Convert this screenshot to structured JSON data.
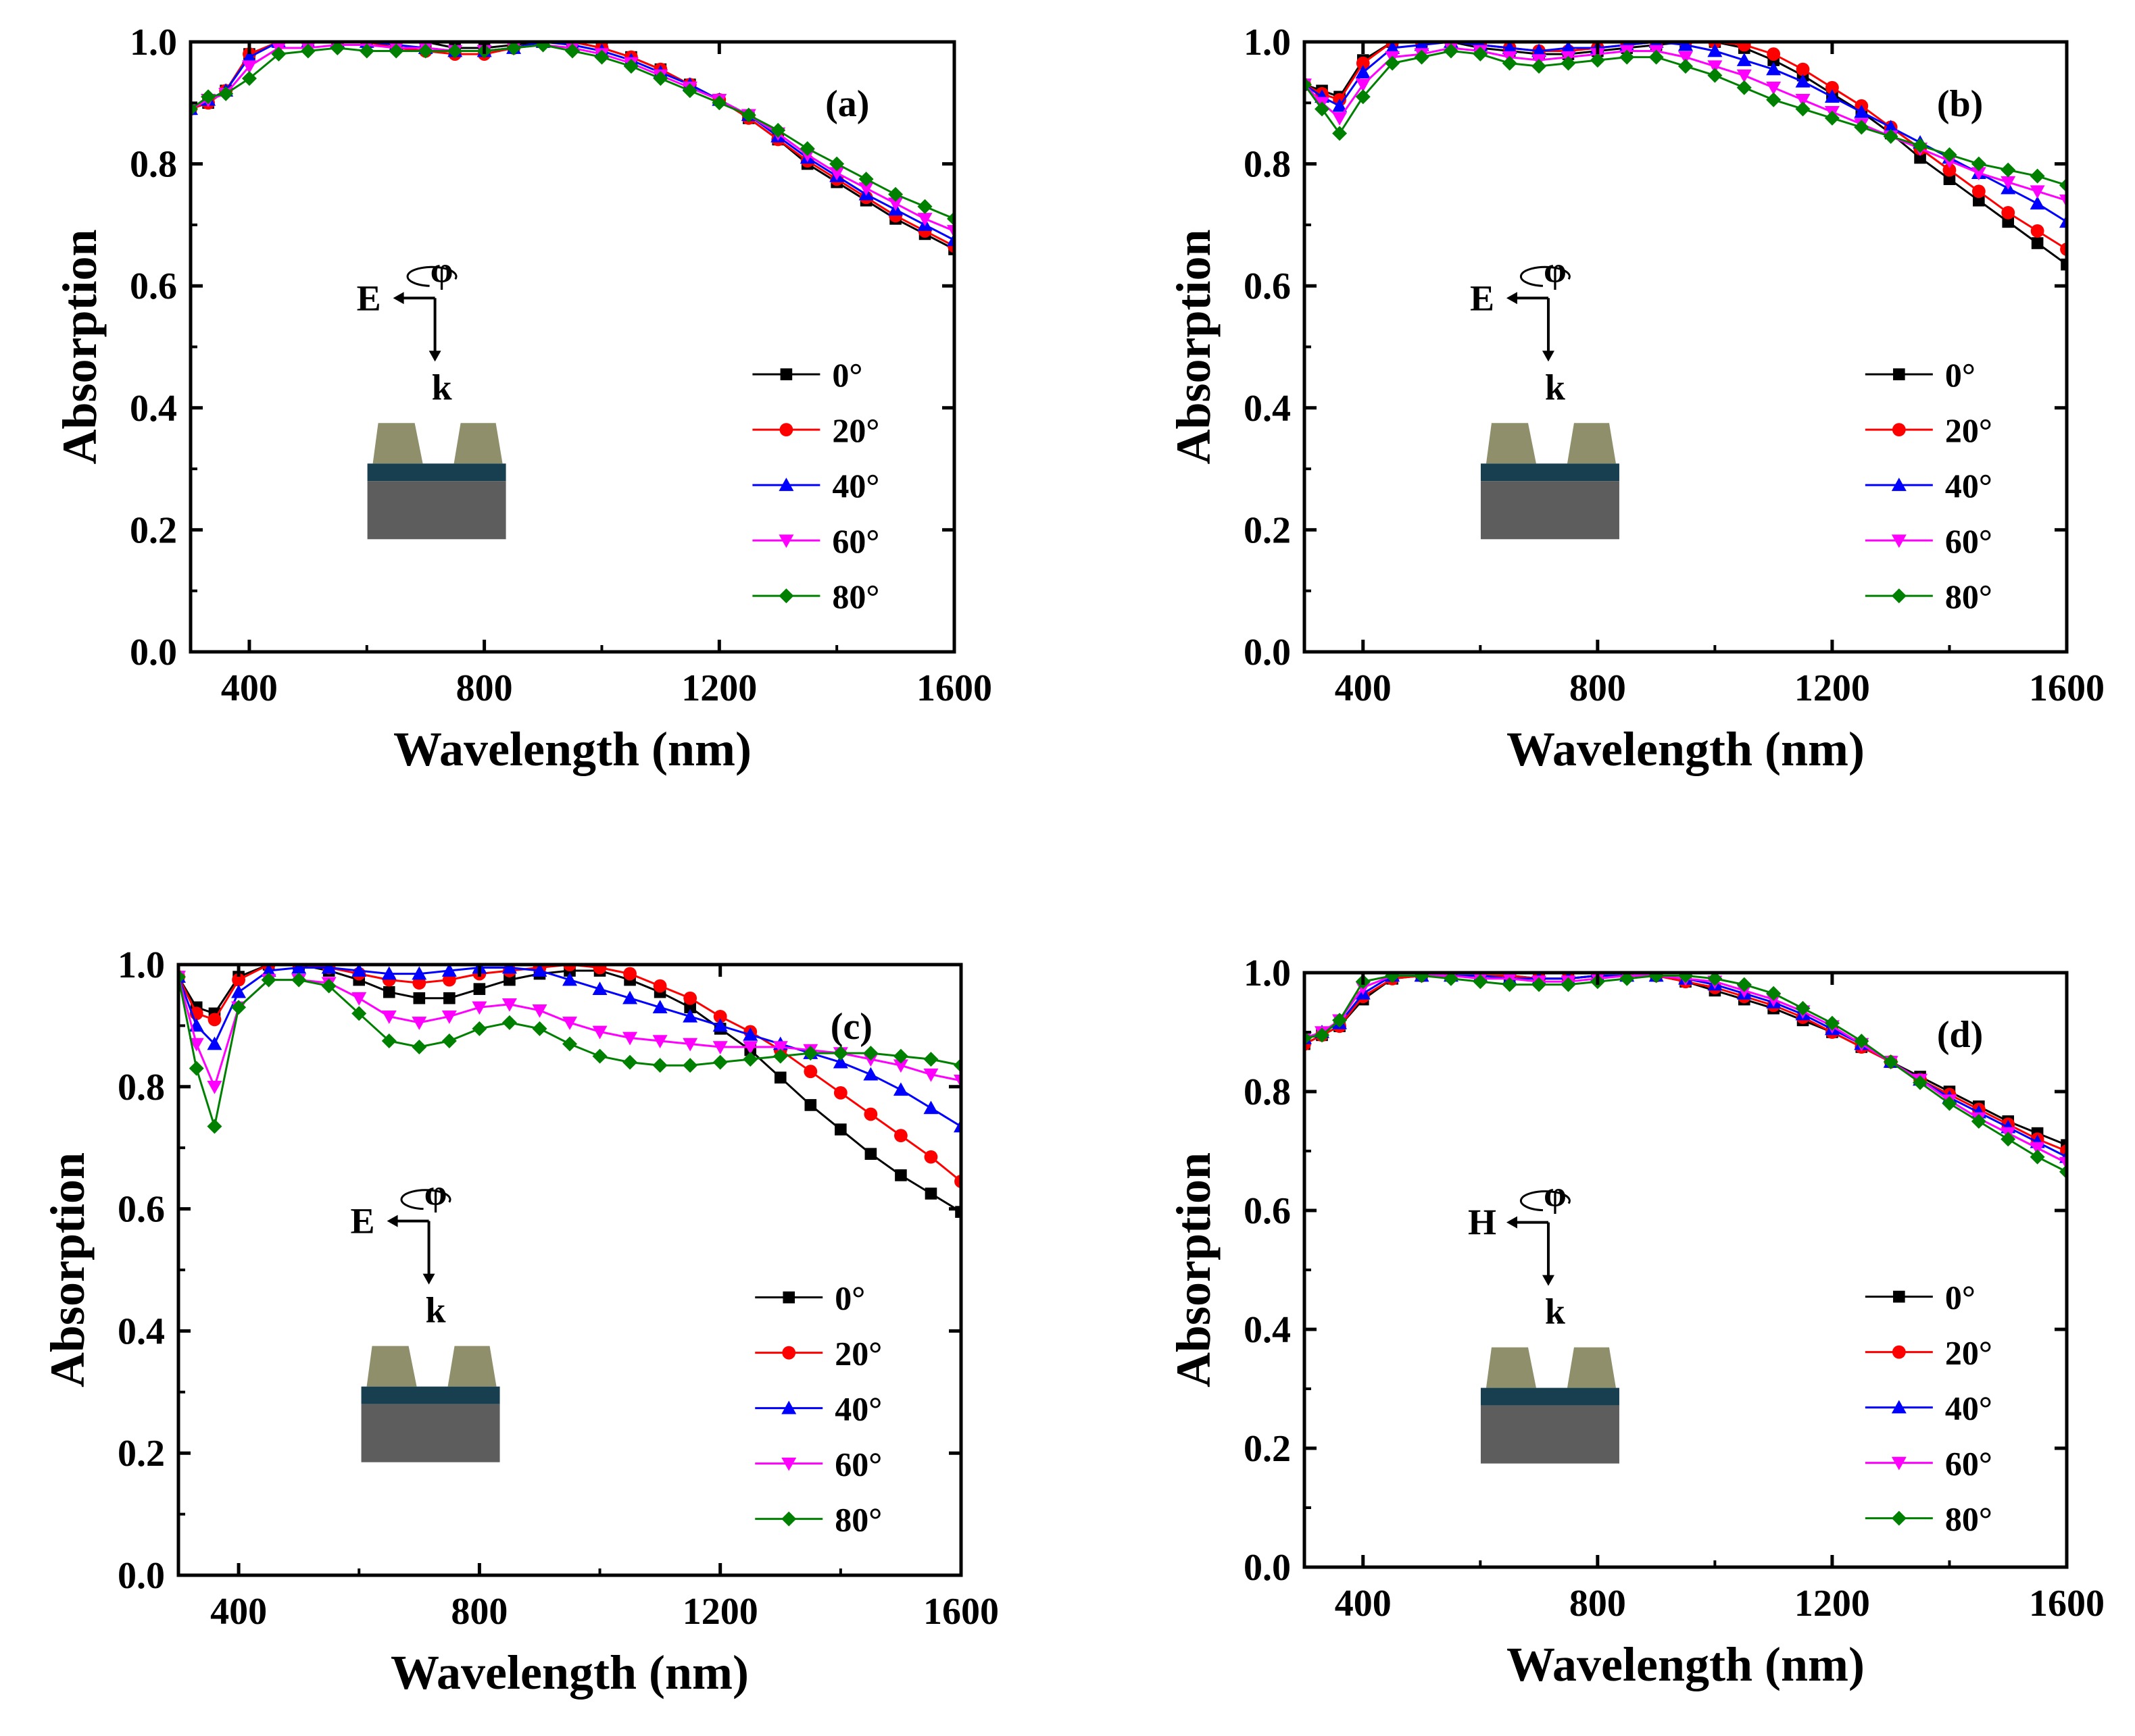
{
  "figure": {
    "description_axis": {
      "x_label": "Wavelength (nm)",
      "y_label": "Absorption"
    }
  },
  "colors": {
    "0": "#000000",
    "20": "#ff0000",
    "40": "#0000ff",
    "60": "#ff00ff",
    "80": "#008000",
    "trapezoid": "#8f8f6b",
    "spacer": "#173f4f",
    "substrate": "#5d5d5d"
  },
  "chart_data": [
    {
      "type": "line",
      "panel_label": "(a)",
      "xlabel": "Wavelength (nm)",
      "ylabel": "Absorption",
      "xlim": [
        300,
        1600
      ],
      "ylim": [
        0.0,
        1.0
      ],
      "xticks": [
        "400",
        "800",
        "1200",
        "1600"
      ],
      "yticks": [
        "0.0",
        "0.2",
        "0.4",
        "0.6",
        "0.8",
        "1.0"
      ],
      "inset": {
        "field": "E",
        "wave": "k",
        "angle": "φ"
      },
      "x": [
        300,
        330,
        360,
        400,
        450,
        500,
        550,
        600,
        650,
        700,
        750,
        800,
        850,
        900,
        950,
        1000,
        1050,
        1100,
        1150,
        1200,
        1250,
        1300,
        1350,
        1400,
        1450,
        1500,
        1550,
        1600
      ],
      "series": [
        {
          "name": "0°",
          "angle": "0",
          "marker": "square",
          "values": [
            0.89,
            0.9,
            0.92,
            0.98,
            1.0,
            1.0,
            1.0,
            1.0,
            1.0,
            1.0,
            0.99,
            0.99,
            0.995,
            1.0,
            1.0,
            0.99,
            0.975,
            0.955,
            0.93,
            0.905,
            0.875,
            0.84,
            0.8,
            0.77,
            0.74,
            0.71,
            0.685,
            0.66
          ]
        },
        {
          "name": "20°",
          "angle": "20",
          "marker": "circle",
          "values": [
            0.89,
            0.9,
            0.92,
            0.98,
            1.0,
            1.0,
            1.0,
            1.0,
            0.99,
            0.985,
            0.98,
            0.98,
            0.99,
            1.0,
            1.0,
            0.99,
            0.975,
            0.955,
            0.93,
            0.905,
            0.875,
            0.84,
            0.805,
            0.775,
            0.745,
            0.715,
            0.69,
            0.665
          ]
        },
        {
          "name": "40°",
          "angle": "40",
          "marker": "triangle-up",
          "values": [
            0.89,
            0.905,
            0.92,
            0.975,
            1.0,
            1.0,
            1.0,
            1.0,
            0.995,
            0.99,
            0.985,
            0.985,
            0.99,
            1.0,
            0.995,
            0.985,
            0.97,
            0.95,
            0.93,
            0.905,
            0.88,
            0.845,
            0.81,
            0.78,
            0.75,
            0.725,
            0.7,
            0.675
          ]
        },
        {
          "name": "60°",
          "angle": "60",
          "marker": "triangle-down",
          "values": [
            0.89,
            0.905,
            0.915,
            0.96,
            0.99,
            0.99,
            0.995,
            0.995,
            0.99,
            0.99,
            0.985,
            0.985,
            0.99,
            0.995,
            0.99,
            0.98,
            0.965,
            0.945,
            0.925,
            0.905,
            0.88,
            0.85,
            0.815,
            0.785,
            0.76,
            0.735,
            0.71,
            0.69
          ]
        },
        {
          "name": "80°",
          "angle": "80",
          "marker": "diamond",
          "values": [
            0.89,
            0.91,
            0.915,
            0.94,
            0.98,
            0.985,
            0.99,
            0.985,
            0.985,
            0.985,
            0.985,
            0.985,
            0.99,
            0.995,
            0.985,
            0.975,
            0.96,
            0.94,
            0.92,
            0.9,
            0.88,
            0.855,
            0.825,
            0.8,
            0.775,
            0.75,
            0.73,
            0.71
          ]
        }
      ]
    },
    {
      "type": "line",
      "panel_label": "(b)",
      "xlabel": "Wavelength (nm)",
      "ylabel": "Absorption",
      "xlim": [
        300,
        1600
      ],
      "ylim": [
        0.0,
        1.0
      ],
      "xticks": [
        "400",
        "800",
        "1200",
        "1600"
      ],
      "yticks": [
        "0.0",
        "0.2",
        "0.4",
        "0.6",
        "0.8",
        "1.0"
      ],
      "inset": {
        "field": "E",
        "wave": "k",
        "angle": "φ"
      },
      "x": [
        300,
        330,
        360,
        400,
        450,
        500,
        550,
        600,
        650,
        700,
        750,
        800,
        850,
        900,
        950,
        1000,
        1050,
        1100,
        1150,
        1200,
        1250,
        1300,
        1350,
        1400,
        1450,
        1500,
        1550,
        1600
      ],
      "series": [
        {
          "name": "0°",
          "angle": "0",
          "marker": "square",
          "values": [
            0.93,
            0.92,
            0.91,
            0.97,
            1.0,
            1.0,
            1.0,
            0.99,
            0.985,
            0.98,
            0.98,
            0.985,
            0.99,
            0.995,
            1.0,
            1.0,
            0.99,
            0.97,
            0.945,
            0.915,
            0.885,
            0.85,
            0.81,
            0.775,
            0.74,
            0.705,
            0.67,
            0.635
          ]
        },
        {
          "name": "20°",
          "angle": "20",
          "marker": "circle",
          "values": [
            0.93,
            0.915,
            0.905,
            0.965,
            1.0,
            1.0,
            1.0,
            0.995,
            0.99,
            0.985,
            0.985,
            0.99,
            0.995,
            1.0,
            1.0,
            1.0,
            0.995,
            0.98,
            0.955,
            0.925,
            0.895,
            0.86,
            0.825,
            0.79,
            0.755,
            0.72,
            0.69,
            0.66
          ]
        },
        {
          "name": "40°",
          "angle": "40",
          "marker": "triangle-up",
          "values": [
            0.93,
            0.91,
            0.895,
            0.95,
            0.99,
            0.995,
            1.0,
            0.995,
            0.99,
            0.985,
            0.99,
            0.99,
            0.995,
            1.0,
            0.995,
            0.985,
            0.97,
            0.955,
            0.935,
            0.91,
            0.885,
            0.86,
            0.835,
            0.81,
            0.785,
            0.76,
            0.735,
            0.705
          ]
        },
        {
          "name": "60°",
          "angle": "60",
          "marker": "triangle-down",
          "values": [
            0.93,
            0.9,
            0.875,
            0.93,
            0.975,
            0.98,
            0.99,
            0.985,
            0.975,
            0.97,
            0.975,
            0.98,
            0.985,
            0.985,
            0.975,
            0.96,
            0.945,
            0.925,
            0.905,
            0.885,
            0.865,
            0.845,
            0.825,
            0.805,
            0.785,
            0.77,
            0.755,
            0.74
          ]
        },
        {
          "name": "80°",
          "angle": "80",
          "marker": "diamond",
          "values": [
            0.93,
            0.89,
            0.85,
            0.91,
            0.965,
            0.975,
            0.985,
            0.98,
            0.965,
            0.96,
            0.965,
            0.97,
            0.975,
            0.975,
            0.96,
            0.945,
            0.925,
            0.905,
            0.89,
            0.875,
            0.86,
            0.845,
            0.83,
            0.815,
            0.8,
            0.79,
            0.78,
            0.765
          ]
        }
      ]
    },
    {
      "type": "line",
      "panel_label": "(c)",
      "xlabel": "Wavelength (nm)",
      "ylabel": "Absorption",
      "xlim": [
        300,
        1600
      ],
      "ylim": [
        0.0,
        1.0
      ],
      "xticks": [
        "400",
        "800",
        "1200",
        "1600"
      ],
      "yticks": [
        "0.0",
        "0.2",
        "0.4",
        "0.6",
        "0.8",
        "1.0"
      ],
      "inset": {
        "field": "E",
        "wave": "k",
        "angle": "φ"
      },
      "x": [
        300,
        330,
        360,
        400,
        450,
        500,
        550,
        600,
        650,
        700,
        750,
        800,
        850,
        900,
        950,
        1000,
        1050,
        1100,
        1150,
        1200,
        1250,
        1300,
        1350,
        1400,
        1450,
        1500,
        1550,
        1600
      ],
      "series": [
        {
          "name": "0°",
          "angle": "0",
          "marker": "square",
          "values": [
            0.98,
            0.93,
            0.92,
            0.98,
            1.0,
            1.0,
            0.99,
            0.975,
            0.955,
            0.945,
            0.945,
            0.96,
            0.975,
            0.985,
            0.99,
            0.99,
            0.975,
            0.955,
            0.93,
            0.895,
            0.86,
            0.815,
            0.77,
            0.73,
            0.69,
            0.655,
            0.625,
            0.595
          ]
        },
        {
          "name": "20°",
          "angle": "20",
          "marker": "circle",
          "values": [
            0.98,
            0.92,
            0.91,
            0.975,
            1.0,
            1.0,
            0.995,
            0.985,
            0.975,
            0.97,
            0.975,
            0.985,
            0.99,
            0.995,
            1.0,
            0.995,
            0.985,
            0.965,
            0.945,
            0.915,
            0.89,
            0.86,
            0.825,
            0.79,
            0.755,
            0.72,
            0.685,
            0.645
          ]
        },
        {
          "name": "40°",
          "angle": "40",
          "marker": "triangle-up",
          "values": [
            0.98,
            0.9,
            0.87,
            0.955,
            0.99,
            0.995,
            0.995,
            0.99,
            0.985,
            0.985,
            0.99,
            0.995,
            0.995,
            0.99,
            0.975,
            0.96,
            0.945,
            0.93,
            0.915,
            0.9,
            0.885,
            0.87,
            0.855,
            0.84,
            0.82,
            0.795,
            0.765,
            0.735
          ]
        },
        {
          "name": "60°",
          "angle": "60",
          "marker": "triangle-down",
          "values": [
            0.98,
            0.87,
            0.8,
            0.93,
            0.975,
            0.975,
            0.97,
            0.945,
            0.915,
            0.905,
            0.915,
            0.93,
            0.935,
            0.925,
            0.905,
            0.89,
            0.88,
            0.875,
            0.87,
            0.865,
            0.865,
            0.865,
            0.86,
            0.855,
            0.845,
            0.835,
            0.82,
            0.81
          ]
        },
        {
          "name": "80°",
          "angle": "80",
          "marker": "diamond",
          "values": [
            0.98,
            0.83,
            0.735,
            0.93,
            0.975,
            0.975,
            0.965,
            0.92,
            0.875,
            0.865,
            0.875,
            0.895,
            0.905,
            0.895,
            0.87,
            0.85,
            0.84,
            0.835,
            0.835,
            0.84,
            0.845,
            0.85,
            0.855,
            0.855,
            0.855,
            0.85,
            0.845,
            0.835
          ]
        }
      ]
    },
    {
      "type": "line",
      "panel_label": "(d)",
      "xlabel": "Wavelength (nm)",
      "ylabel": "Absorption",
      "xlim": [
        300,
        1600
      ],
      "ylim": [
        0.0,
        1.0
      ],
      "xticks": [
        "400",
        "800",
        "1200",
        "1600"
      ],
      "yticks": [
        "0.0",
        "0.2",
        "0.4",
        "0.6",
        "0.8",
        "1.0"
      ],
      "inset": {
        "field": "H",
        "wave": "k",
        "angle": "φ"
      },
      "x": [
        300,
        330,
        360,
        400,
        450,
        500,
        550,
        600,
        650,
        700,
        750,
        800,
        850,
        900,
        950,
        1000,
        1050,
        1100,
        1150,
        1200,
        1250,
        1300,
        1350,
        1400,
        1450,
        1500,
        1550,
        1600
      ],
      "series": [
        {
          "name": "0°",
          "angle": "0",
          "marker": "square",
          "values": [
            0.88,
            0.895,
            0.91,
            0.955,
            0.99,
            0.995,
            0.995,
            0.995,
            0.995,
            0.99,
            0.99,
            0.995,
            0.995,
            0.995,
            0.985,
            0.97,
            0.955,
            0.94,
            0.92,
            0.9,
            0.875,
            0.85,
            0.825,
            0.8,
            0.775,
            0.75,
            0.73,
            0.71
          ]
        },
        {
          "name": "20°",
          "angle": "20",
          "marker": "circle",
          "values": [
            0.88,
            0.895,
            0.91,
            0.96,
            0.99,
            0.995,
            0.995,
            0.995,
            0.995,
            0.99,
            0.99,
            0.995,
            0.995,
            0.995,
            0.985,
            0.975,
            0.96,
            0.945,
            0.925,
            0.9,
            0.875,
            0.85,
            0.82,
            0.795,
            0.77,
            0.745,
            0.72,
            0.7
          ]
        },
        {
          "name": "40°",
          "angle": "40",
          "marker": "triangle-up",
          "values": [
            0.89,
            0.9,
            0.915,
            0.965,
            0.995,
            0.995,
            0.995,
            0.995,
            0.99,
            0.99,
            0.99,
            0.995,
            0.995,
            0.995,
            0.99,
            0.98,
            0.965,
            0.95,
            0.93,
            0.905,
            0.88,
            0.85,
            0.82,
            0.79,
            0.765,
            0.74,
            0.715,
            0.69
          ]
        },
        {
          "name": "60°",
          "angle": "60",
          "marker": "triangle-down",
          "values": [
            0.89,
            0.9,
            0.92,
            0.975,
            0.995,
            0.995,
            0.995,
            0.99,
            0.99,
            0.985,
            0.985,
            0.99,
            0.995,
            0.995,
            0.99,
            0.985,
            0.97,
            0.955,
            0.935,
            0.91,
            0.88,
            0.85,
            0.82,
            0.785,
            0.755,
            0.73,
            0.705,
            0.68
          ]
        },
        {
          "name": "80°",
          "angle": "80",
          "marker": "diamond",
          "values": [
            0.89,
            0.895,
            0.92,
            0.985,
            0.995,
            0.995,
            0.99,
            0.985,
            0.98,
            0.98,
            0.98,
            0.985,
            0.99,
            0.995,
            0.995,
            0.99,
            0.98,
            0.965,
            0.94,
            0.915,
            0.885,
            0.85,
            0.815,
            0.78,
            0.75,
            0.72,
            0.69,
            0.665
          ]
        }
      ]
    }
  ]
}
